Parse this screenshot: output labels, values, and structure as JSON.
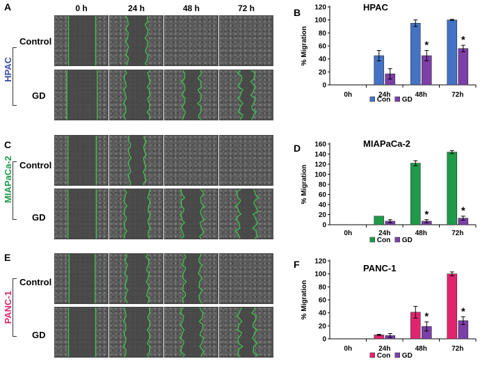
{
  "panel_letters": {
    "a": "A",
    "b": "B",
    "c": "C",
    "d": "D",
    "e": "E",
    "f": "F"
  },
  "time_headers": [
    "0 h",
    "24 h",
    "48 h",
    "72 h"
  ],
  "cell_lines": {
    "hpac": "HPAC",
    "mia": "MIAPaCa-2",
    "panc": "PANC-1"
  },
  "row_labels": {
    "control": "Control",
    "gd": "GD"
  },
  "colors": {
    "hpac": "#3a4fa8",
    "mia": "#1e9a4a",
    "panc": "#e0256e",
    "gd": "#7c3fa8",
    "wound": "#39d04a"
  },
  "chart_data": [
    {
      "id": "chartB",
      "type": "bar",
      "title": "HPAC",
      "ylabel": "% Migration",
      "ylim": [
        0,
        120
      ],
      "yticks": [
        0,
        20,
        40,
        60,
        80,
        100,
        120
      ],
      "categories": [
        "0h",
        "24h",
        "48h",
        "72h"
      ],
      "series": [
        {
          "name": "Con",
          "color": "#4472c4",
          "values": [
            0,
            45,
            95,
            100
          ],
          "errors": [
            0,
            8,
            5,
            1
          ]
        },
        {
          "name": "GD",
          "color": "#7c3fa8",
          "values": [
            0,
            17,
            45,
            56
          ],
          "errors": [
            0,
            8,
            8,
            5
          ]
        }
      ],
      "significance": [
        {
          "category": "48h",
          "label": "*"
        },
        {
          "category": "72h",
          "label": "*"
        }
      ]
    },
    {
      "id": "chartD",
      "type": "bar",
      "title": "MIAPaCa-2",
      "ylabel": "% Migration",
      "ylim": [
        0,
        160
      ],
      "yticks": [
        0,
        20,
        40,
        60,
        80,
        100,
        120,
        140,
        160
      ],
      "categories": [
        "0h",
        "24h",
        "48h",
        "72h"
      ],
      "series": [
        {
          "name": "Con",
          "color": "#1e9a4a",
          "values": [
            0,
            17,
            122,
            144
          ],
          "errors": [
            0,
            0,
            5,
            3
          ]
        },
        {
          "name": "GD",
          "color": "#7c3fa8",
          "values": [
            0,
            7,
            7,
            13
          ],
          "errors": [
            0,
            3,
            3,
            4
          ]
        }
      ],
      "significance": [
        {
          "category": "48h",
          "label": "*"
        },
        {
          "category": "72h",
          "label": "*"
        }
      ]
    },
    {
      "id": "chartF",
      "type": "bar",
      "title": "PANC-1",
      "ylabel": "% Migration",
      "ylim": [
        0,
        120
      ],
      "yticks": [
        0,
        20,
        40,
        60,
        80,
        100,
        120
      ],
      "categories": [
        "0h",
        "24h",
        "48h",
        "72h"
      ],
      "series": [
        {
          "name": "Con",
          "color": "#e0256e",
          "values": [
            0,
            6,
            41,
            100
          ],
          "errors": [
            0,
            1,
            9,
            3
          ]
        },
        {
          "name": "GD",
          "color": "#7c3fa8",
          "values": [
            0,
            5,
            19,
            28
          ],
          "errors": [
            0,
            3,
            7,
            6
          ]
        }
      ],
      "significance": [
        {
          "category": "48h",
          "label": "*"
        },
        {
          "category": "72h",
          "label": "*"
        }
      ]
    }
  ]
}
